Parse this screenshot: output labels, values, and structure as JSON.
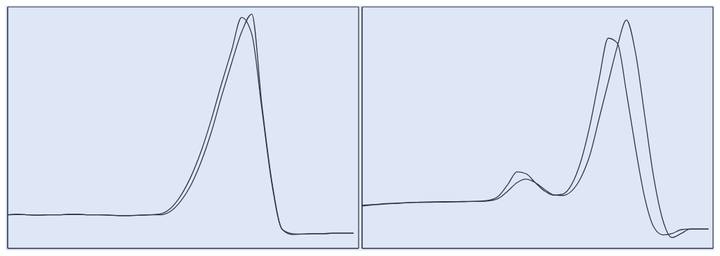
{
  "chart_data": [
    {
      "type": "line",
      "grid": true,
      "tick_labels": false,
      "x": [
        0.6,
        0.7,
        0.8,
        0.9,
        1.0,
        1.1,
        1.2,
        1.3,
        1.4,
        1.5,
        1.6,
        1.7,
        1.8,
        1.9,
        2.0,
        2.1,
        2.2,
        2.3,
        2.4,
        2.5,
        2.6,
        2.7,
        2.8,
        2.9,
        3.0,
        3.1,
        3.2,
        3.3,
        3.4,
        3.5,
        3.6,
        3.7,
        3.8,
        3.9,
        4.0
      ],
      "xlim": [
        0.6,
        4.05
      ],
      "xticks": [
        1,
        2,
        3,
        4
      ],
      "ylim": [
        -0.3,
        5.45
      ],
      "yticks": [
        0,
        1,
        2,
        3,
        4,
        5
      ],
      "series": [
        {
          "color": "#2f3440",
          "values": [
            0.5,
            0.51,
            0.5,
            0.49,
            0.5,
            0.5,
            0.51,
            0.51,
            0.5,
            0.5,
            0.49,
            0.48,
            0.48,
            0.49,
            0.5,
            0.52,
            0.65,
            0.95,
            1.4,
            2.0,
            2.75,
            3.6,
            4.4,
            5.2,
            4.8,
            3.0,
            1.2,
            0.15,
            0.05,
            0.04,
            0.05,
            0.05,
            0.06,
            0.06,
            0.06
          ]
        },
        {
          "color": "#2f3440",
          "values": [
            0.5,
            0.51,
            0.5,
            0.49,
            0.5,
            0.5,
            0.51,
            0.51,
            0.5,
            0.5,
            0.49,
            0.48,
            0.48,
            0.49,
            0.5,
            0.5,
            0.58,
            0.82,
            1.2,
            1.75,
            2.45,
            3.3,
            4.1,
            4.85,
            5.28,
            3.1,
            1.25,
            0.15,
            0.03,
            0.04,
            0.05,
            0.05,
            0.06,
            0.06,
            0.06
          ]
        }
      ]
    },
    {
      "type": "line",
      "grid": true,
      "tick_labels": false,
      "x": [
        0.4,
        0.5,
        0.6,
        0.7,
        0.8,
        0.9,
        1.0,
        1.1,
        1.2,
        1.3,
        1.4,
        1.5,
        1.6,
        1.7,
        1.8,
        1.9,
        2.0,
        2.1,
        2.2,
        2.3,
        2.4,
        2.5,
        2.6,
        2.7,
        2.8,
        2.9,
        3.0,
        3.1,
        3.2,
        3.3,
        3.4,
        3.5,
        3.6,
        3.7,
        3.8,
        3.9,
        4.0,
        4.1,
        4.2
      ],
      "xlim": [
        0.4,
        4.25
      ],
      "xticks": [
        1,
        2,
        3,
        4
      ],
      "ylim": [
        -0.55,
        6.8
      ],
      "yticks": [
        0,
        1,
        2,
        3,
        4,
        5,
        6
      ],
      "series": [
        {
          "color": "#2f3440",
          "values": [
            0.76,
            0.78,
            0.8,
            0.82,
            0.83,
            0.84,
            0.85,
            0.86,
            0.86,
            0.87,
            0.87,
            0.88,
            0.88,
            0.89,
            0.92,
            1.05,
            1.4,
            1.78,
            1.72,
            1.45,
            1.2,
            1.07,
            1.1,
            1.4,
            2.1,
            3.2,
            4.6,
            5.85,
            5.7,
            4.2,
            2.5,
            1.0,
            0.1,
            -0.14,
            -0.1,
            0.02,
            0.04,
            0.04,
            0.04
          ]
        },
        {
          "color": "#2f3440",
          "values": [
            0.74,
            0.77,
            0.79,
            0.81,
            0.82,
            0.84,
            0.85,
            0.85,
            0.86,
            0.86,
            0.87,
            0.87,
            0.88,
            0.88,
            0.9,
            0.98,
            1.2,
            1.45,
            1.56,
            1.45,
            1.25,
            1.08,
            1.06,
            1.2,
            1.6,
            2.3,
            3.4,
            4.5,
            5.6,
            6.4,
            5.4,
            3.5,
            1.6,
            0.3,
            -0.22,
            -0.1,
            0.04,
            0.04,
            0.04
          ]
        }
      ]
    }
  ]
}
